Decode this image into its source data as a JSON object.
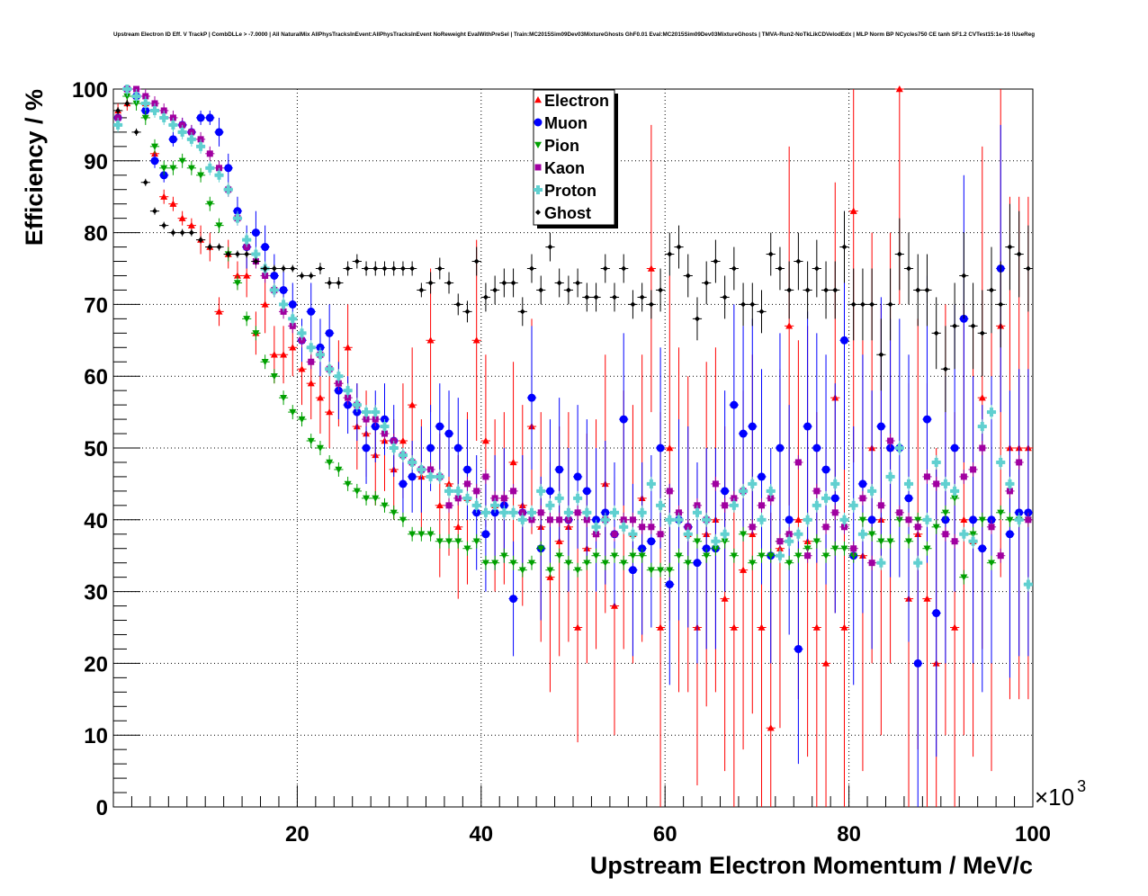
{
  "chart_data": {
    "type": "scatter",
    "title": "Upstream Electron ID Eff. V TrackP | CombDLLe > -7.0000 | All NaturalMix AllPhysTracksInEvent:AllPhysTracksInEvent NoReweight EvalWithPreSel | Train:MC2015Sim09Dev03MixtureGhosts GhF0.01 Eval:MC2015Sim09Dev03MixtureGhosts | TMVA-Run2-NoTkLikCDVelodEdx | MLP Norm BP NCycles750 CE tanh SF1.2 CVTest15:1e-16 !UseReg",
    "xlabel": "Upstream Electron Momentum / MeV/c",
    "ylabel": "Efficiency / %",
    "x_multiplier": "×10",
    "x_multiplier_exp": "3",
    "xlim": [
      0,
      100
    ],
    "ylim": [
      0,
      100
    ],
    "xticks": [
      20,
      40,
      60,
      80,
      100
    ],
    "yticks": [
      0,
      10,
      20,
      30,
      40,
      50,
      60,
      70,
      80,
      90,
      100
    ],
    "grid": true,
    "legend_position": "top-center",
    "bin_width": 1,
    "series": [
      {
        "name": "Electron",
        "color": "#ff0000",
        "marker": "triangle-up",
        "values": [
          97,
          98,
          99,
          98,
          91,
          85,
          84,
          82,
          81,
          79,
          78,
          69,
          77,
          74,
          74,
          66,
          70,
          63,
          63,
          64,
          61,
          59,
          57,
          55,
          59,
          64,
          53,
          52,
          49,
          51,
          47,
          51,
          56,
          46,
          65,
          42,
          45,
          39,
          43,
          65,
          51,
          42,
          43,
          48,
          42,
          53,
          39,
          32,
          37,
          39,
          25,
          36,
          38,
          45,
          28,
          40,
          38,
          43,
          75,
          25,
          50,
          40,
          38,
          25,
          38,
          40,
          29,
          25,
          33,
          38,
          25,
          11,
          36,
          67,
          40,
          37,
          25,
          20,
          57,
          25,
          83,
          35,
          50,
          40,
          50,
          100,
          29,
          38,
          29,
          20,
          40,
          25,
          40,
          37,
          57,
          40,
          67,
          50,
          50,
          50
        ],
        "errors": [
          1,
          1,
          1,
          1,
          1,
          1,
          1,
          1,
          1,
          2,
          2,
          2,
          2,
          2,
          3,
          3,
          4,
          4,
          4,
          4,
          5,
          5,
          5,
          5,
          6,
          6,
          6,
          6,
          7,
          7,
          7,
          8,
          8,
          8,
          10,
          10,
          10,
          10,
          12,
          14,
          12,
          12,
          12,
          14,
          14,
          15,
          16,
          16,
          16,
          16,
          16,
          16,
          16,
          18,
          18,
          18,
          18,
          20,
          20,
          30,
          24,
          24,
          22,
          22,
          24,
          24,
          24,
          25,
          25,
          25,
          30,
          30,
          25,
          25,
          25,
          30,
          30,
          30,
          30,
          30,
          35,
          30,
          30,
          30,
          30,
          30,
          30,
          30,
          30,
          30,
          30,
          30,
          30,
          30,
          35,
          35,
          35,
          35,
          35,
          35
        ]
      },
      {
        "name": "Muon",
        "color": "#0000ff",
        "marker": "circle",
        "values": [
          96,
          100,
          99,
          97,
          90,
          88,
          93,
          95,
          94,
          96,
          96,
          94,
          89,
          83,
          78,
          80,
          78,
          74,
          72,
          70,
          65,
          69,
          64,
          66,
          58,
          56,
          55,
          50,
          53,
          54,
          51,
          45,
          46,
          47,
          50,
          53,
          52,
          50,
          47,
          41,
          38,
          41,
          42,
          29,
          41,
          57,
          36,
          44,
          47,
          40,
          46,
          44,
          40,
          41,
          38,
          54,
          33,
          36,
          37,
          50,
          31,
          40,
          39,
          34,
          36,
          36,
          44,
          56,
          52,
          53,
          46,
          35,
          50,
          40,
          22,
          53,
          50,
          47,
          43,
          65,
          35,
          45,
          40,
          53,
          50,
          50,
          43,
          20,
          54,
          27,
          40,
          50,
          68,
          40,
          36,
          40,
          75,
          38,
          41,
          41
        ],
        "errors": [
          1,
          1,
          1,
          1,
          1,
          1,
          1,
          1,
          1,
          1,
          1,
          2,
          2,
          2,
          3,
          3,
          3,
          3,
          3,
          3,
          3,
          4,
          4,
          4,
          4,
          4,
          4,
          5,
          5,
          5,
          5,
          5,
          5,
          6,
          6,
          6,
          6,
          7,
          7,
          8,
          8,
          8,
          8,
          8,
          8,
          10,
          10,
          10,
          10,
          10,
          10,
          10,
          10,
          10,
          10,
          12,
          12,
          12,
          12,
          14,
          14,
          14,
          14,
          14,
          14,
          14,
          14,
          14,
          15,
          15,
          15,
          15,
          16,
          16,
          16,
          16,
          16,
          16,
          16,
          18,
          18,
          18,
          18,
          18,
          18,
          18,
          20,
          20,
          20,
          20,
          20,
          20,
          20,
          20,
          20,
          20,
          20,
          20,
          20,
          20
        ]
      },
      {
        "name": "Pion",
        "color": "#00a000",
        "marker": "triangle-down",
        "values": [
          96,
          99,
          98,
          96,
          92,
          89,
          89,
          90,
          89,
          88,
          84,
          81,
          77,
          73,
          68,
          66,
          62,
          60,
          57,
          55,
          54,
          51,
          50,
          48,
          47,
          45,
          44,
          43,
          43,
          42,
          41,
          40,
          38,
          38,
          38,
          37,
          37,
          37,
          36,
          37,
          34,
          34,
          35,
          34,
          33,
          34,
          36,
          33,
          35,
          34,
          33,
          34,
          35,
          34,
          35,
          34,
          35,
          35,
          33,
          33,
          33,
          35,
          34,
          37,
          35,
          36,
          37,
          35,
          38,
          34,
          35,
          35,
          37,
          34,
          35,
          36,
          37,
          35,
          36,
          36,
          35,
          40,
          38,
          37,
          37,
          40,
          37,
          40,
          36,
          39,
          41,
          43,
          32,
          38,
          40,
          34,
          41,
          40,
          40,
          40
        ],
        "error_typical": 1
      },
      {
        "name": "Kaon",
        "color": "#a000a0",
        "marker": "square",
        "values": [
          96,
          100,
          100,
          99,
          98,
          97,
          96,
          95,
          94,
          93,
          91,
          89,
          86,
          82,
          78,
          76,
          74,
          72,
          69,
          67,
          65,
          62,
          63,
          61,
          59,
          57,
          56,
          54,
          54,
          52,
          51,
          49,
          48,
          47,
          47,
          46,
          42,
          43,
          45,
          44,
          46,
          43,
          43,
          44,
          41,
          40,
          41,
          40,
          40,
          40,
          41,
          40,
          38,
          40,
          38,
          40,
          40,
          39,
          39,
          38,
          44,
          41,
          39,
          42,
          40,
          45,
          42,
          43,
          44,
          39,
          42,
          43,
          37,
          38,
          48,
          35,
          44,
          39,
          41,
          39,
          36,
          43,
          34,
          42,
          51,
          41,
          40,
          39,
          46,
          45,
          38,
          37,
          46,
          47,
          50,
          39,
          35,
          44,
          48,
          40
        ],
        "error_typical": 1
      },
      {
        "name": "Proton",
        "color": "#60d0d0",
        "marker": "cross",
        "values": [
          95,
          100,
          99,
          98,
          97,
          96,
          95,
          94,
          93,
          92,
          89,
          88,
          86,
          82,
          79,
          77,
          75,
          72,
          70,
          68,
          66,
          64,
          63,
          61,
          60,
          58,
          56,
          55,
          55,
          53,
          50,
          49,
          48,
          47,
          46,
          46,
          44,
          44,
          43,
          42,
          41,
          42,
          41,
          41,
          40,
          41,
          44,
          42,
          43,
          41,
          43,
          41,
          39,
          40,
          41,
          39,
          38,
          41,
          45,
          42,
          40,
          40,
          38,
          41,
          40,
          37,
          38,
          42,
          44,
          45,
          40,
          44,
          35,
          37,
          38,
          40,
          42,
          43,
          45,
          40,
          42,
          38,
          44,
          34,
          46,
          50,
          45,
          34,
          40,
          48,
          45,
          44,
          38,
          37,
          53,
          55,
          48,
          45,
          40,
          31
        ],
        "error_typical": 1
      },
      {
        "name": "Ghost",
        "color": "#000000",
        "marker": "diamond",
        "values": [
          97,
          98,
          94,
          87,
          83,
          81,
          80,
          80,
          80,
          79,
          78,
          78,
          77,
          77,
          77,
          76,
          75,
          75,
          75,
          75,
          74,
          74,
          75,
          73,
          73,
          75,
          76,
          75,
          75,
          75,
          75,
          75,
          75,
          72,
          73,
          75,
          73,
          70,
          69,
          76,
          71,
          72,
          73,
          73,
          69,
          75,
          72,
          78,
          73,
          72,
          73,
          71,
          71,
          75,
          71,
          75,
          70,
          71,
          70,
          72,
          77,
          78,
          74,
          68,
          73,
          76,
          71,
          75,
          70,
          70,
          69,
          77,
          75,
          72,
          76,
          72,
          75,
          72,
          72,
          78,
          70,
          70,
          70,
          63,
          70,
          77,
          75,
          72,
          72,
          66,
          61,
          67,
          74,
          67,
          66,
          72,
          70,
          78,
          77,
          75
        ],
        "errors": [
          0.5,
          0.5,
          0.5,
          0.5,
          0.5,
          0.5,
          0.5,
          0.5,
          0.5,
          0.5,
          0.5,
          0.5,
          0.5,
          0.5,
          0.5,
          0.5,
          0.5,
          0.5,
          0.5,
          0.5,
          0.5,
          0.5,
          0.8,
          0.8,
          0.8,
          1,
          1,
          1,
          1,
          1,
          1,
          1,
          1,
          1,
          1.5,
          1.5,
          1.5,
          1.5,
          1.5,
          2,
          2,
          2,
          2,
          2,
          2,
          2,
          2,
          2,
          2,
          2,
          2,
          2,
          2,
          2,
          2,
          2,
          2,
          2,
          2,
          3,
          3,
          3,
          3,
          3,
          3,
          3,
          3,
          3,
          3,
          3,
          3,
          3,
          3,
          4,
          4,
          4,
          4,
          4,
          4,
          5,
          5,
          5,
          5,
          5,
          5,
          5,
          5,
          5,
          5,
          5,
          6,
          6,
          6,
          6,
          6,
          6,
          6,
          6,
          6,
          6
        ]
      }
    ]
  }
}
